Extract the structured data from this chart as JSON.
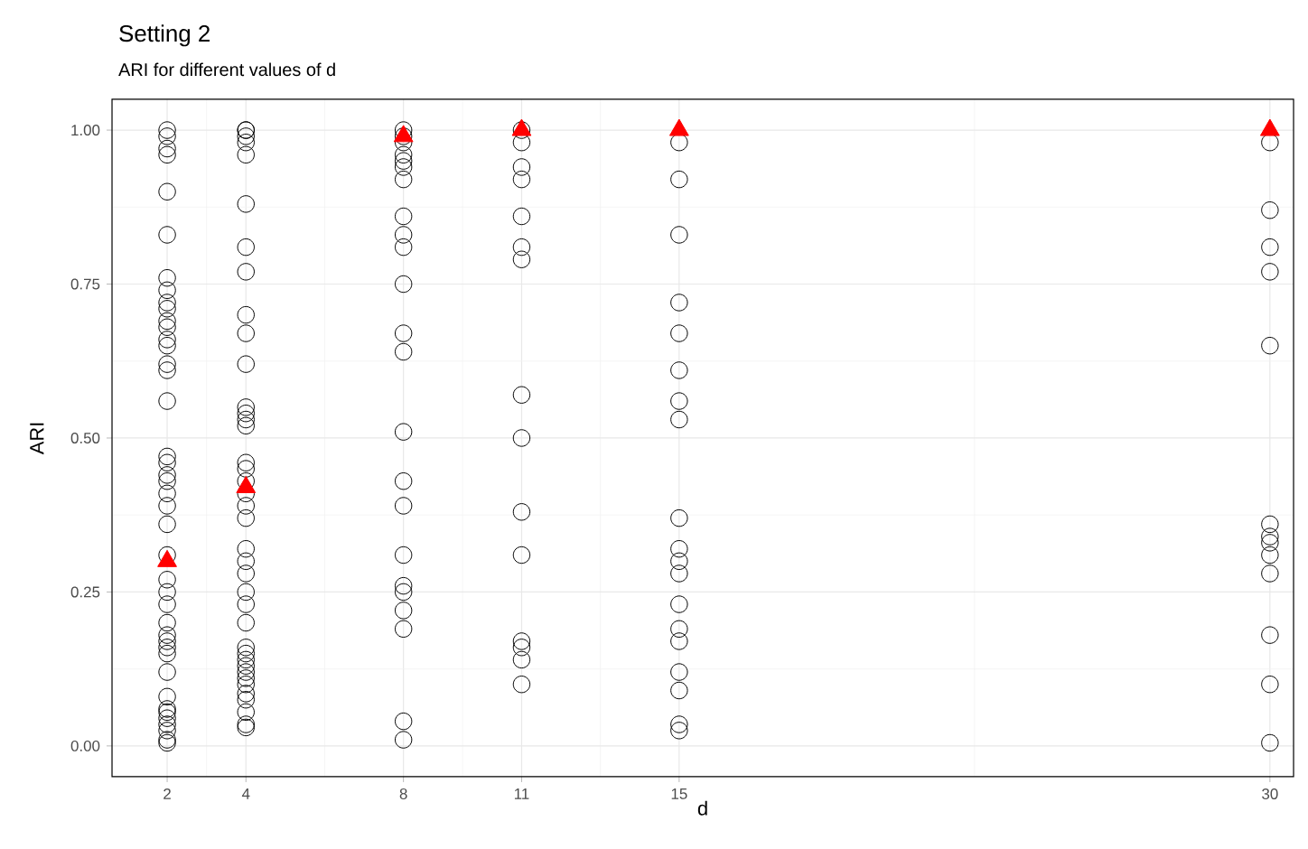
{
  "chart_data": {
    "type": "scatter",
    "title": "Setting 2",
    "subtitle": "ARI for different values of d",
    "xlabel": "d",
    "ylabel": "ARI",
    "xlim": [
      0.6,
      30.6
    ],
    "ylim": [
      -0.05,
      1.05
    ],
    "xticks": [
      2,
      4,
      8,
      11,
      15,
      30
    ],
    "yticks": [
      {
        "value": 0,
        "label": "0.00"
      },
      {
        "value": 0.25,
        "label": "0.25"
      },
      {
        "value": 0.5,
        "label": "0.50"
      },
      {
        "value": 0.75,
        "label": "0.75"
      },
      {
        "value": 1,
        "label": "1.00"
      }
    ],
    "grid": true,
    "series": [
      {
        "marker": "circle",
        "color": "#000000",
        "x": [
          2,
          2,
          2,
          2,
          2,
          2,
          2,
          2,
          2,
          2,
          2,
          2,
          2,
          2,
          2,
          2,
          2,
          2,
          2,
          2,
          2,
          2,
          2,
          2,
          2,
          2,
          2,
          2,
          2,
          2,
          2,
          2,
          2,
          2,
          2,
          2,
          2,
          2,
          2,
          2,
          2,
          2,
          4,
          4,
          4,
          4,
          4,
          4,
          4,
          4,
          4,
          4,
          4,
          4,
          4,
          4,
          4,
          4,
          4,
          4,
          4,
          4,
          4,
          4,
          4,
          4,
          4,
          4,
          4,
          4,
          4,
          4,
          4,
          4,
          4,
          4,
          4,
          4,
          4,
          4,
          4,
          8,
          8,
          8,
          8,
          8,
          8,
          8,
          8,
          8,
          8,
          8,
          8,
          8,
          8,
          8,
          8,
          8,
          8,
          8,
          8,
          8,
          8,
          8,
          11,
          11,
          11,
          11,
          11,
          11,
          11,
          11,
          11,
          11,
          11,
          11,
          11,
          11,
          11,
          15,
          15,
          15,
          15,
          15,
          15,
          15,
          15,
          15,
          15,
          15,
          15,
          15,
          15,
          15,
          15,
          15,
          15,
          15,
          30,
          30,
          30,
          30,
          30,
          30,
          30,
          30,
          30,
          30,
          30,
          30,
          30
        ],
        "values": [
          1.0,
          0.99,
          0.97,
          0.96,
          0.9,
          0.83,
          0.76,
          0.74,
          0.72,
          0.71,
          0.69,
          0.68,
          0.66,
          0.65,
          0.62,
          0.61,
          0.56,
          0.47,
          0.46,
          0.44,
          0.43,
          0.41,
          0.39,
          0.36,
          0.31,
          0.27,
          0.25,
          0.23,
          0.2,
          0.18,
          0.17,
          0.16,
          0.15,
          0.12,
          0.08,
          0.06,
          0.055,
          0.045,
          0.035,
          0.025,
          0.01,
          0.005,
          1.0,
          1.0,
          0.99,
          0.98,
          0.96,
          0.88,
          0.81,
          0.77,
          0.7,
          0.67,
          0.62,
          0.55,
          0.54,
          0.53,
          0.52,
          0.46,
          0.45,
          0.43,
          0.41,
          0.39,
          0.37,
          0.32,
          0.3,
          0.28,
          0.25,
          0.23,
          0.2,
          0.16,
          0.15,
          0.14,
          0.13,
          0.12,
          0.11,
          0.1,
          0.085,
          0.075,
          0.055,
          0.035,
          0.03,
          1.0,
          0.99,
          0.98,
          0.96,
          0.95,
          0.94,
          0.92,
          0.86,
          0.83,
          0.81,
          0.75,
          0.67,
          0.64,
          0.51,
          0.43,
          0.39,
          0.31,
          0.26,
          0.25,
          0.22,
          0.19,
          0.04,
          0.01,
          1.0,
          0.98,
          0.94,
          0.92,
          0.86,
          0.81,
          0.79,
          0.57,
          0.5,
          0.38,
          0.31,
          0.17,
          0.16,
          0.14,
          0.1,
          0.98,
          0.92,
          0.83,
          0.72,
          0.67,
          0.61,
          0.56,
          0.53,
          0.37,
          0.32,
          0.3,
          0.28,
          0.23,
          0.19,
          0.17,
          0.12,
          0.09,
          0.035,
          0.025,
          0.98,
          0.87,
          0.81,
          0.77,
          0.65,
          0.36,
          0.34,
          0.33,
          0.31,
          0.28,
          0.18,
          0.1,
          0.005
        ]
      },
      {
        "marker": "triangle",
        "color": "#ff0000",
        "x": [
          2,
          4,
          8,
          11,
          15,
          30
        ],
        "values": [
          0.3,
          0.42,
          0.99,
          1.0,
          1.0,
          1.0
        ]
      }
    ]
  }
}
